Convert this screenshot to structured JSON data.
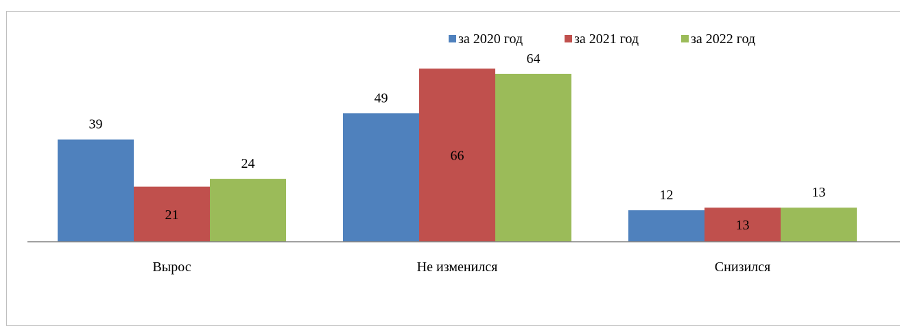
{
  "chart_data": {
    "type": "bar",
    "title": "",
    "xlabel": "",
    "ylabel": "",
    "categories": [
      "Вырос",
      "Не изменился",
      "Снизился"
    ],
    "series": [
      {
        "name": "за 2020 год",
        "color": "#4F81BD",
        "values": [
          39,
          49,
          12
        ]
      },
      {
        "name": "за 2021 год",
        "color": "#C0504D",
        "values": [
          21,
          66,
          13
        ]
      },
      {
        "name": "за 2022 год",
        "color": "#9BBB59",
        "values": [
          24,
          64,
          13
        ]
      }
    ],
    "ylim": [
      0,
      70
    ],
    "grid": false,
    "legend_position": "top-right"
  }
}
